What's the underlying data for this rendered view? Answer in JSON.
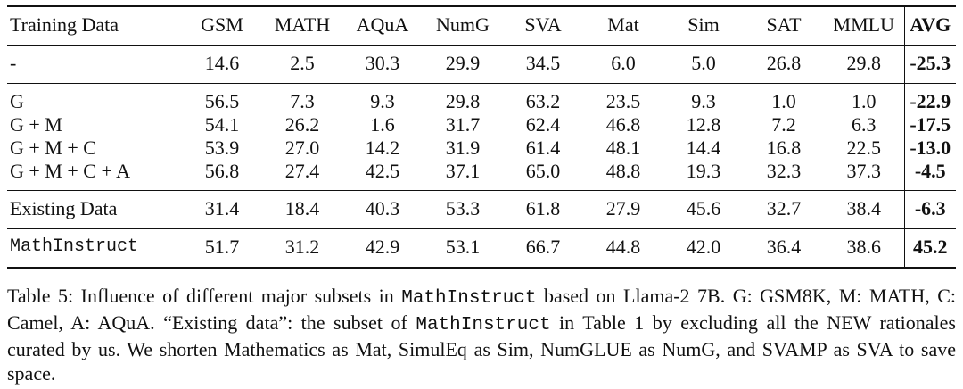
{
  "table": {
    "headers": [
      "Training Data",
      "GSM",
      "MATH",
      "AQuA",
      "NumG",
      "SVA",
      "Mat",
      "Sim",
      "SAT",
      "MMLU",
      "AVG"
    ],
    "groups": [
      [
        {
          "name": "-",
          "values": [
            "14.6",
            "2.5",
            "30.3",
            "29.9",
            "34.5",
            "6.0",
            "5.0",
            "26.8",
            "29.8"
          ],
          "avg": "-25.3"
        }
      ],
      [
        {
          "name": "G",
          "values": [
            "56.5",
            "7.3",
            "9.3",
            "29.8",
            "63.2",
            "23.5",
            "9.3",
            "1.0",
            "1.0"
          ],
          "avg": "-22.9"
        },
        {
          "name": "G + M",
          "values": [
            "54.1",
            "26.2",
            "1.6",
            "31.7",
            "62.4",
            "46.8",
            "12.8",
            "7.2",
            "6.3"
          ],
          "avg": "-17.5"
        },
        {
          "name": "G + M + C",
          "values": [
            "53.9",
            "27.0",
            "14.2",
            "31.9",
            "61.4",
            "48.1",
            "14.4",
            "16.8",
            "22.5"
          ],
          "avg": "-13.0"
        },
        {
          "name": "G + M + C + A",
          "values": [
            "56.8",
            "27.4",
            "42.5",
            "37.1",
            "65.0",
            "48.8",
            "19.3",
            "32.3",
            "37.3"
          ],
          "avg": "-4.5"
        }
      ],
      [
        {
          "name": "Existing Data",
          "values": [
            "31.4",
            "18.4",
            "40.3",
            "53.3",
            "61.8",
            "27.9",
            "45.6",
            "32.7",
            "38.4"
          ],
          "avg": "-6.3"
        }
      ],
      [
        {
          "name": "MathInstruct",
          "mono": true,
          "values": [
            "51.7",
            "31.2",
            "42.9",
            "53.1",
            "66.7",
            "44.8",
            "42.0",
            "36.4",
            "38.6"
          ],
          "avg": "45.2"
        }
      ]
    ]
  },
  "caption": {
    "p1": "Table 5: Influence of different major subsets in ",
    "m1": "MathInstruct",
    "p2": " based on Llama-2 7B. G: GSM8K, M: MATH, C: Camel, A: AQuA. “Existing data”: the subset of ",
    "m2": "MathInstruct",
    "p3": " in Table 1 by excluding all the NEW rationales curated by us. We shorten Mathematics as Mat, SimulEq as Sim, NumGLUE as NumG, and SVAMP as SVA to save space."
  }
}
